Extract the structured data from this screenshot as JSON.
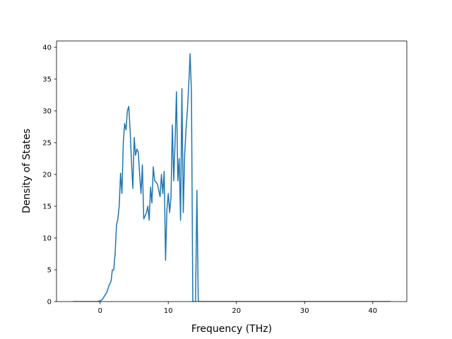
{
  "chart_data": {
    "type": "line",
    "title": "",
    "xlabel": "Frequency (THz)",
    "ylabel": "Density of States",
    "xlim": [
      -6.4,
      45.0
    ],
    "ylim": [
      0,
      41
    ],
    "grid": false,
    "line_color": "#1f77b4",
    "x_ticks": [
      0,
      10,
      20,
      30,
      40
    ],
    "y_ticks": [
      0,
      5,
      10,
      15,
      20,
      25,
      30,
      35,
      40
    ],
    "series": [
      {
        "x": [
          -4.0,
          -2.0,
          -0.5,
          0.0,
          0.3,
          0.6,
          1.0,
          1.3,
          1.6,
          1.8,
          2.0,
          2.2,
          2.4,
          2.6,
          2.8,
          3.0,
          3.2,
          3.4,
          3.6,
          3.8,
          4.0,
          4.2,
          4.4,
          4.6,
          4.8,
          5.0,
          5.2,
          5.4,
          5.6,
          5.8,
          6.0,
          6.2,
          6.4,
          6.6,
          6.8,
          7.0,
          7.2,
          7.4,
          7.6,
          7.8,
          8.0,
          8.2,
          8.4,
          8.6,
          8.8,
          9.0,
          9.2,
          9.4,
          9.6,
          9.8,
          10.0,
          10.2,
          10.4,
          10.6,
          10.8,
          11.0,
          11.2,
          11.4,
          11.6,
          11.8,
          12.0,
          12.2,
          12.4,
          12.6,
          12.8,
          13.0,
          13.2,
          13.4,
          13.6,
          13.8,
          14.0,
          14.2,
          14.4,
          14.6,
          14.8,
          15.0,
          15.2,
          15.4,
          15.6,
          15.8,
          16.0,
          16.2,
          42.6
        ],
        "y": [
          0,
          0,
          0,
          0.1,
          0.3,
          0.8,
          1.5,
          2.5,
          3.2,
          5.0,
          5.0,
          7.5,
          12.0,
          13.0,
          15.0,
          20.2,
          17.0,
          25.0,
          28.0,
          27.0,
          30.0,
          30.7,
          27.0,
          22.0,
          17.8,
          25.8,
          23.0,
          24.0,
          23.5,
          20.0,
          17.0,
          21.5,
          13.0,
          13.5,
          14.0,
          15.0,
          12.8,
          18.0,
          15.5,
          21.2,
          19.0,
          18.8,
          18.5,
          17.5,
          16.5,
          20.0,
          17.0,
          20.5,
          6.5,
          14.5,
          17.0,
          14.0,
          16.5,
          27.8,
          19.0,
          25.0,
          33.0,
          19.0,
          22.5,
          12.8,
          33.5,
          14.0,
          23.0,
          27.0,
          30.0,
          34.0,
          39.0,
          33.0,
          0,
          0,
          0,
          17.5,
          0,
          0,
          0,
          0,
          0,
          0,
          0,
          0,
          0,
          0,
          0
        ]
      }
    ]
  }
}
